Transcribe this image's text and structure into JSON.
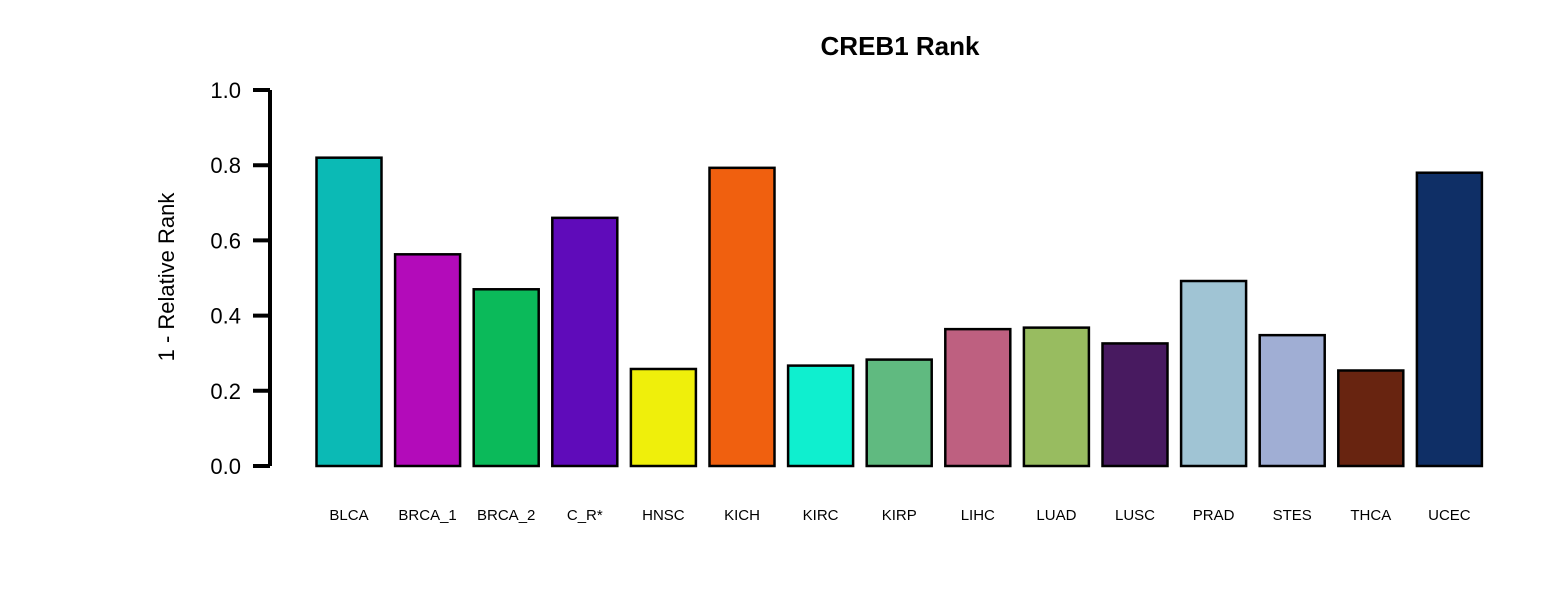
{
  "chart_data": {
    "type": "bar",
    "title": "CREB1 Rank",
    "xlabel": "",
    "ylabel": "1 - Relative Rank",
    "ylim": [
      0,
      1
    ],
    "yticks": [
      "0.0",
      "0.2",
      "0.4",
      "0.6",
      "0.8",
      "1.0"
    ],
    "grid": false,
    "legend": "none",
    "categories": [
      "BLCA",
      "BRCA_1",
      "BRCA_2",
      "C_R*",
      "HNSC",
      "KICH",
      "KIRC",
      "KIRP",
      "LIHC",
      "LUAD",
      "LUSC",
      "PRAD",
      "STES",
      "THCA",
      "UCEC"
    ],
    "values": [
      0.82,
      0.563,
      0.47,
      0.66,
      0.258,
      0.793,
      0.267,
      0.283,
      0.364,
      0.368,
      0.326,
      0.492,
      0.348,
      0.254,
      0.78
    ],
    "colors": [
      "#0BBAB5",
      "#B30BBA",
      "#0BBA5A",
      "#5F0BBA",
      "#EFEF0B",
      "#F0600F",
      "#0FEFCF",
      "#60BA80",
      "#BE6080",
      "#98BC60",
      "#481A60",
      "#A0C4D4",
      "#A0AED4",
      "#682410",
      "#0F2F66"
    ]
  }
}
